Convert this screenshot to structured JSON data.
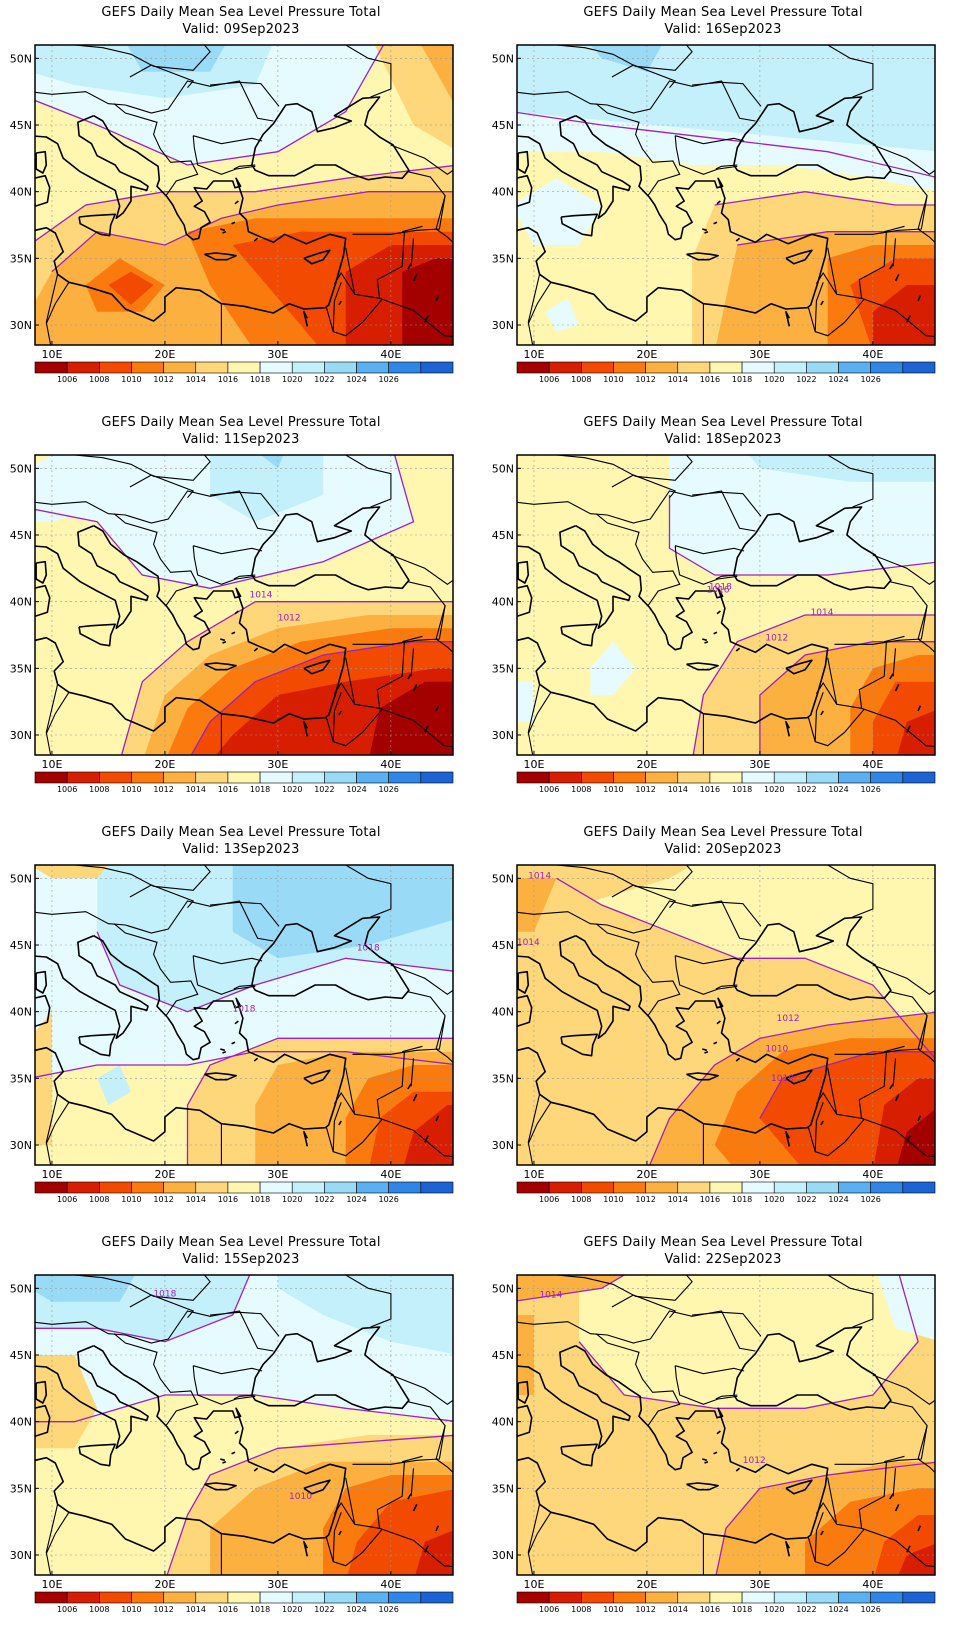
{
  "figure": {
    "panels": [
      {
        "title": "GEFS Daily Mean Sea Level Pressure Total",
        "valid": "Valid: 09Sep2023",
        "variant": 0,
        "iso_labels": []
      },
      {
        "title": "GEFS Daily Mean Sea Level Pressure Total",
        "valid": "Valid: 16Sep2023",
        "variant": 1,
        "iso_labels": []
      },
      {
        "title": "GEFS Daily Mean Sea Level Pressure Total",
        "valid": "Valid: 11Sep2023",
        "variant": 2,
        "iso_labels": [
          "1014",
          "1012"
        ]
      },
      {
        "title": "GEFS Daily Mean Sea Level Pressure Total",
        "valid": "Valid: 18Sep2023",
        "variant": 3,
        "iso_labels": [
          "1018",
          "1016",
          "1014",
          "1012"
        ]
      },
      {
        "title": "GEFS Daily Mean Sea Level Pressure Total",
        "valid": "Valid: 13Sep2023",
        "variant": 4,
        "iso_labels": [
          "1018",
          "1018"
        ]
      },
      {
        "title": "GEFS Daily Mean Sea Level Pressure Total",
        "valid": "Valid: 20Sep2023",
        "variant": 5,
        "iso_labels": [
          "1014",
          "1014",
          "1012",
          "1010",
          "1010"
        ]
      },
      {
        "title": "GEFS Daily Mean Sea Level Pressure Total",
        "valid": "Valid: 15Sep2023",
        "variant": 6,
        "iso_labels": [
          "1018",
          "1010"
        ]
      },
      {
        "title": "GEFS Daily Mean Sea Level Pressure Total",
        "valid": "Valid: 22Sep2023",
        "variant": 7,
        "iso_labels": [
          "1014",
          "1012"
        ]
      }
    ],
    "lat_labels": [
      "50N",
      "45N",
      "40N",
      "35N",
      "30N"
    ],
    "lon_labels": [
      "10E",
      "20E",
      "30E",
      "40E"
    ],
    "colorbar": {
      "labels": [
        "1006",
        "1008",
        "1010",
        "1012",
        "1014",
        "1016",
        "1018",
        "1020",
        "1022",
        "1024",
        "1026"
      ],
      "colors": [
        "#a50000",
        "#d81e00",
        "#f24a00",
        "#fa7a0e",
        "#fbb040",
        "#fdd77a",
        "#fff6b0",
        "#e6fbff",
        "#c3f0fa",
        "#99dbf6",
        "#5ab0f0",
        "#2f86e6",
        "#1c64d6"
      ]
    },
    "contour_color": "#a020c0"
  }
}
